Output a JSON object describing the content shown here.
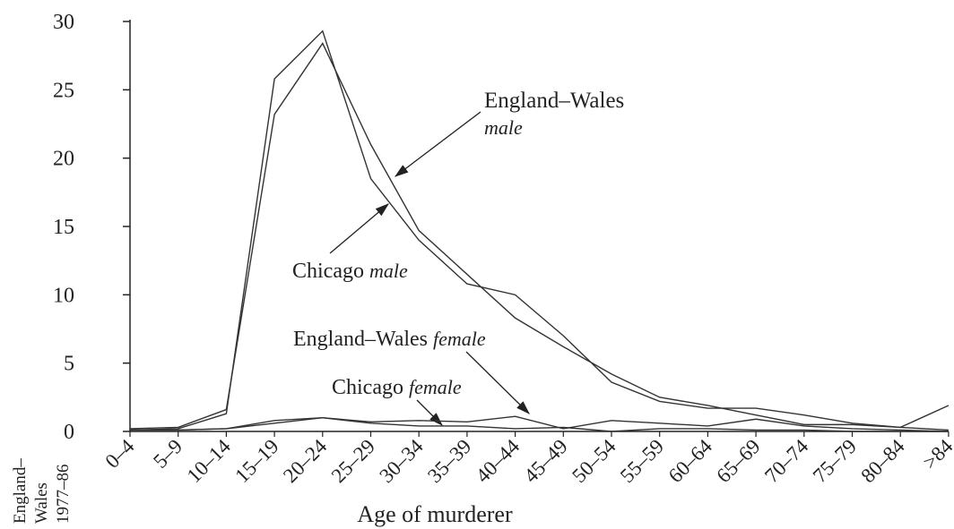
{
  "chart_data": {
    "type": "line",
    "x_label": "Age of murderer",
    "x_group_label": [
      "England–",
      "Wales",
      "1977–86"
    ],
    "categories": [
      "0–4",
      "5–9",
      "10–14",
      "15–19",
      "20–24",
      "25–29",
      "30–34",
      "35–39",
      "40–44",
      "45–49",
      "50–54",
      "55–59",
      "60–64",
      "65–69",
      "70–74",
      "75–79",
      "80–84",
      ">84"
    ],
    "ylim": [
      0,
      30
    ],
    "yticks": [
      0,
      5,
      10,
      15,
      20,
      25,
      30
    ],
    "series": [
      {
        "name": "England–Wales male",
        "color": "#333333",
        "values": [
          0.2,
          0.3,
          1.6,
          23.2,
          28.4,
          21,
          14.7,
          11.5,
          8.3,
          6.2,
          4.2,
          2.5,
          1.9,
          1.2,
          0.5,
          0.5,
          0.3,
          1.9
        ]
      },
      {
        "name": "Chicago male",
        "color": "#333333",
        "values": [
          0.1,
          0.2,
          1.3,
          25.8,
          29.3,
          18.5,
          14,
          10.8,
          10,
          7,
          3.6,
          2.2,
          1.7,
          1.7,
          1.2,
          0.6,
          0.3,
          0.1
        ]
      },
      {
        "name": "England–Wales female",
        "color": "#333333",
        "values": [
          0.1,
          0.1,
          0.2,
          0.6,
          1.0,
          0.7,
          0.8,
          0.7,
          1.1,
          0.2,
          0.8,
          0.6,
          0.4,
          0.9,
          0.4,
          0.2,
          0.1,
          0
        ]
      },
      {
        "name": "Chicago female",
        "color": "#333333",
        "values": [
          0.1,
          0.1,
          0.2,
          0.8,
          1.0,
          0.6,
          0.4,
          0.4,
          0.2,
          0.3,
          0,
          0.2,
          0.2,
          0.1,
          0.1,
          0,
          0,
          0
        ]
      }
    ],
    "annotations": [
      {
        "text": "England–Wales",
        "italic": "male"
      },
      {
        "text": "Chicago",
        "italic": "male"
      },
      {
        "text": "England–Wales",
        "italic": "female"
      },
      {
        "text": "Chicago",
        "italic": "female"
      }
    ]
  }
}
